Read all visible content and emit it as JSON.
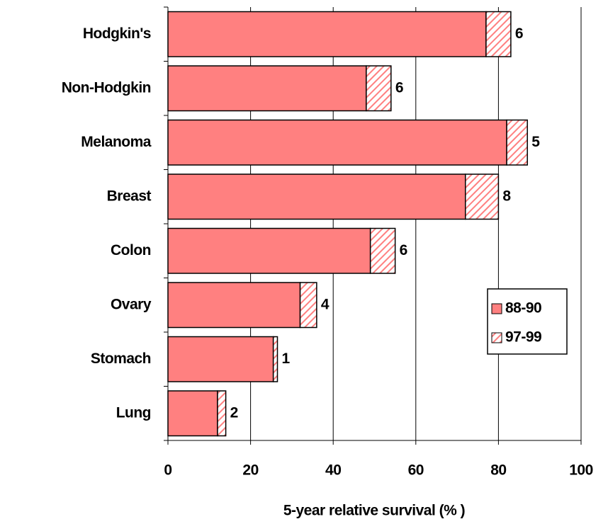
{
  "chart_data": {
    "type": "stacked-barh",
    "x_label": "5-year relative survival (% )",
    "categories": [
      "Hodgkin's",
      "Non-Hodgkin",
      "Melanoma",
      "Breast",
      "Colon",
      "Ovary",
      "Stomach",
      "Lung"
    ],
    "series": [
      {
        "name": "88-90",
        "color": "#ff8080",
        "pattern": "solid",
        "values": [
          77,
          48,
          82,
          72,
          49,
          32,
          25.5,
          12
        ]
      },
      {
        "name": "97-99",
        "color": "#ff8080",
        "pattern": "hatch",
        "values": [
          6,
          6,
          5,
          8,
          6,
          4,
          1,
          2
        ]
      }
    ],
    "xlim": [
      0,
      100
    ],
    "xticks": [
      0,
      20,
      40,
      60,
      80,
      100
    ],
    "grid": true,
    "legend": "right"
  }
}
